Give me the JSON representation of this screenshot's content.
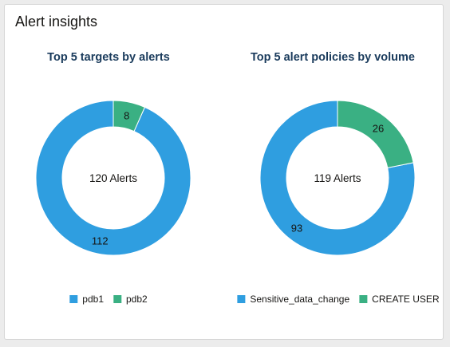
{
  "card": {
    "title": "Alert insights"
  },
  "colors": {
    "blue": "#2f9ee0",
    "green": "#3ab083"
  },
  "chart_data": [
    {
      "type": "pie",
      "title": "Top 5 targets by alerts",
      "center_label": "120 Alerts",
      "categories": [
        "pdb1",
        "pdb2"
      ],
      "values": [
        112,
        8
      ],
      "legend": "bottom"
    },
    {
      "type": "pie",
      "title": "Top 5 alert policies by volume",
      "center_label": "119 Alerts",
      "categories": [
        "Sensitive_data_change",
        "CREATE USER"
      ],
      "values": [
        93,
        26
      ],
      "legend": "bottom"
    }
  ]
}
